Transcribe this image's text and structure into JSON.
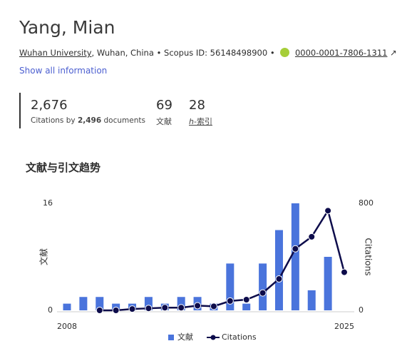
{
  "header": {
    "name": "Yang, Mian",
    "affiliation": "Wuhan University",
    "location": ", Wuhan, China",
    "separator": "•",
    "scopus_id": "Scopus ID: 56148498900",
    "orcid": "0000-0001-7806-1311",
    "show_all": "Show all information"
  },
  "metrics": {
    "citations": "2,676",
    "citations_prefix": "Citations by ",
    "documents": "2,496",
    "citations_suffix": " documents",
    "doc_count": "69",
    "doc_label": "文献",
    "h_index": "28",
    "h_italic": "h",
    "h_label": "-索引"
  },
  "chart_data": {
    "type": "bar_line",
    "title": "文献与引文趋势",
    "categories": [
      "2008",
      null,
      null,
      null,
      null,
      null,
      null,
      null,
      null,
      null,
      null,
      null,
      null,
      null,
      null,
      null,
      null,
      "2025"
    ],
    "series": [
      {
        "name": "文献",
        "color": "#4a74dc",
        "type": "bar",
        "axis": "y",
        "values": [
          1,
          2,
          2,
          1,
          1,
          2,
          1,
          2,
          2,
          1,
          7,
          1,
          7,
          12,
          16,
          3,
          8,
          0
        ]
      },
      {
        "name": "Citations",
        "color": "#0d0c4b",
        "type": "line",
        "axis": "y2",
        "values": [
          null,
          null,
          0,
          0,
          10,
          15,
          20,
          20,
          35,
          30,
          70,
          80,
          130,
          235,
          460,
          550,
          745,
          285
        ]
      }
    ],
    "ylabel": "文献",
    "y2label": "Citations",
    "ylim": [
      0,
      16
    ],
    "yticks": [
      0,
      16
    ],
    "y2lim": [
      0,
      800
    ],
    "y2ticks": [
      0,
      800
    ]
  }
}
